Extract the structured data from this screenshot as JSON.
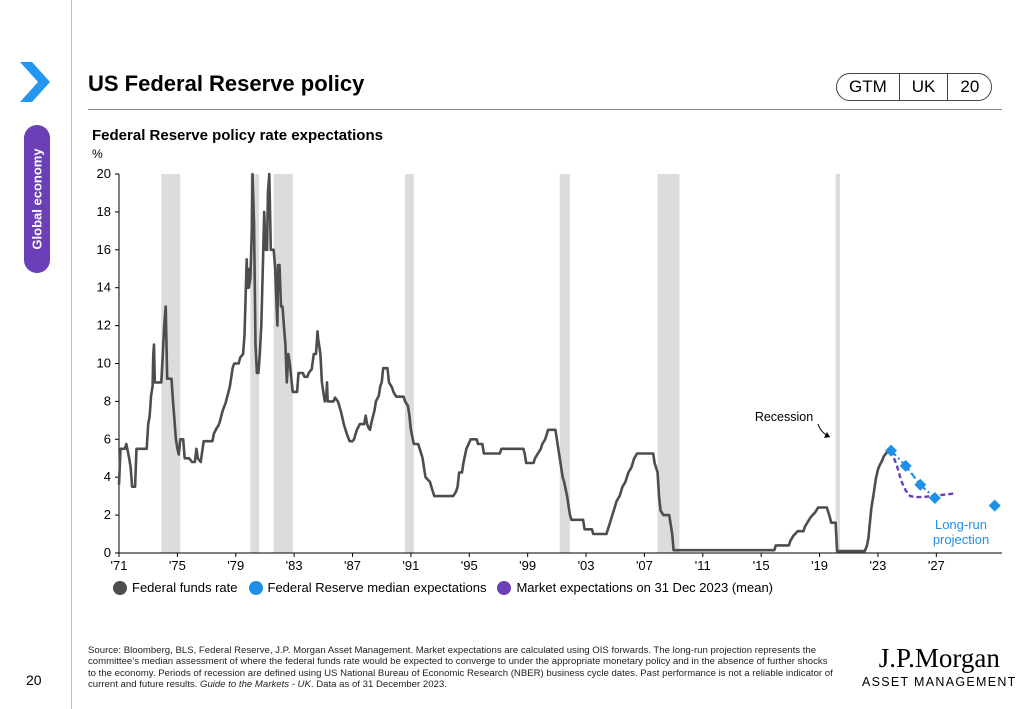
{
  "header": {
    "title": "US Federal Reserve policy",
    "badge": [
      "GTM",
      "UK",
      "20"
    ],
    "section_tab": "Global economy",
    "page_number": "20",
    "colors": {
      "accent": "#6a3fb8",
      "chevron": "#2196f3"
    }
  },
  "chart_data": {
    "type": "line",
    "title": "Federal Reserve policy rate expectations",
    "ylabel": "%",
    "ylim": [
      0,
      20
    ],
    "yticks": [
      0,
      2,
      4,
      6,
      8,
      10,
      12,
      14,
      16,
      18,
      20
    ],
    "xlim": [
      1971,
      2031.5
    ],
    "xticks": [
      {
        "x": 1971,
        "label": "'71"
      },
      {
        "x": 1975,
        "label": "'75"
      },
      {
        "x": 1979,
        "label": "'79"
      },
      {
        "x": 1983,
        "label": "'83"
      },
      {
        "x": 1987,
        "label": "'87"
      },
      {
        "x": 1991,
        "label": "'91"
      },
      {
        "x": 1995,
        "label": "'95"
      },
      {
        "x": 1999,
        "label": "'99"
      },
      {
        "x": 2003,
        "label": "'03"
      },
      {
        "x": 2007,
        "label": "'07"
      },
      {
        "x": 2011,
        "label": "'11"
      },
      {
        "x": 2015,
        "label": "'15"
      },
      {
        "x": 2019,
        "label": "'19"
      },
      {
        "x": 2023,
        "label": "'23"
      },
      {
        "x": 2027,
        "label": "'27"
      }
    ],
    "recessions": [
      [
        1973.9,
        1975.2
      ],
      [
        1980.0,
        1980.6
      ],
      [
        1981.6,
        1982.9
      ],
      [
        1990.6,
        1991.2
      ],
      [
        2001.2,
        2001.9
      ],
      [
        2007.9,
        2009.4
      ],
      [
        2020.1,
        2020.4
      ]
    ],
    "annotations": {
      "recession": "Recession",
      "long_run": [
        "Long-run",
        "projection"
      ]
    },
    "colors": {
      "fed_funds": "#4d4d4d",
      "fed_median": "#1e90e8",
      "market": "#6a3fb8",
      "recession": "#dcdcdc"
    },
    "series": [
      {
        "name": "Federal funds rate",
        "points": [
          [
            1971.0,
            3.6
          ],
          [
            1971.1,
            5.5
          ],
          [
            1971.4,
            5.5
          ],
          [
            1971.5,
            5.75
          ],
          [
            1971.7,
            5.0
          ],
          [
            1971.8,
            4.5
          ],
          [
            1971.9,
            3.5
          ],
          [
            1972.1,
            3.5
          ],
          [
            1972.2,
            5.5
          ],
          [
            1972.9,
            5.5
          ],
          [
            1973.0,
            6.8
          ],
          [
            1973.1,
            7.2
          ],
          [
            1973.2,
            8.3
          ],
          [
            1973.3,
            8.8
          ],
          [
            1973.35,
            10.5
          ],
          [
            1973.4,
            11.0
          ],
          [
            1973.45,
            9.0
          ],
          [
            1973.9,
            9.0
          ],
          [
            1974.0,
            10.5
          ],
          [
            1974.1,
            12.0
          ],
          [
            1974.2,
            13.0
          ],
          [
            1974.3,
            9.2
          ],
          [
            1974.6,
            9.2
          ],
          [
            1974.7,
            8.0
          ],
          [
            1974.8,
            7.0
          ],
          [
            1974.9,
            6.0
          ],
          [
            1975.0,
            5.5
          ],
          [
            1975.1,
            5.2
          ],
          [
            1975.2,
            6.0
          ],
          [
            1975.4,
            6.0
          ],
          [
            1975.5,
            5.0
          ],
          [
            1975.8,
            5.0
          ],
          [
            1976.0,
            4.8
          ],
          [
            1976.2,
            4.8
          ],
          [
            1976.3,
            5.5
          ],
          [
            1976.4,
            5.0
          ],
          [
            1976.6,
            4.8
          ],
          [
            1976.8,
            5.9
          ],
          [
            1977.4,
            5.9
          ],
          [
            1977.5,
            6.3
          ],
          [
            1977.7,
            6.6
          ],
          [
            1977.8,
            6.7
          ],
          [
            1977.9,
            6.9
          ],
          [
            1978.1,
            7.5
          ],
          [
            1978.3,
            7.9
          ],
          [
            1978.5,
            8.5
          ],
          [
            1978.6,
            8.8
          ],
          [
            1978.8,
            9.8
          ],
          [
            1978.9,
            10.0
          ],
          [
            1979.2,
            10.0
          ],
          [
            1979.3,
            10.3
          ],
          [
            1979.5,
            10.5
          ],
          [
            1979.6,
            11.5
          ],
          [
            1979.75,
            15.5
          ],
          [
            1979.8,
            14.0
          ],
          [
            1979.85,
            15.0
          ],
          [
            1979.9,
            14.0
          ],
          [
            1980.0,
            14.5
          ],
          [
            1980.1,
            17.0
          ],
          [
            1980.15,
            20.0
          ],
          [
            1980.25,
            17.5
          ],
          [
            1980.3,
            14.5
          ],
          [
            1980.35,
            11.0
          ],
          [
            1980.45,
            9.5
          ],
          [
            1980.55,
            9.5
          ],
          [
            1980.65,
            10.5
          ],
          [
            1980.75,
            12.0
          ],
          [
            1980.85,
            15.0
          ],
          [
            1980.95,
            18.0
          ],
          [
            1981.05,
            16.0
          ],
          [
            1981.15,
            16.0
          ],
          [
            1981.2,
            19.0
          ],
          [
            1981.3,
            20.0
          ],
          [
            1981.4,
            16.0
          ],
          [
            1981.6,
            16.0
          ],
          [
            1981.7,
            15.0
          ],
          [
            1981.8,
            13.0
          ],
          [
            1981.85,
            12.0
          ],
          [
            1981.9,
            15.2
          ],
          [
            1982.0,
            15.2
          ],
          [
            1982.1,
            13.0
          ],
          [
            1982.2,
            13.0
          ],
          [
            1982.3,
            12.0
          ],
          [
            1982.4,
            11.0
          ],
          [
            1982.5,
            9.0
          ],
          [
            1982.6,
            10.5
          ],
          [
            1982.7,
            10.0
          ],
          [
            1982.9,
            8.5
          ],
          [
            1983.2,
            8.5
          ],
          [
            1983.3,
            9.5
          ],
          [
            1983.6,
            9.5
          ],
          [
            1983.7,
            9.3
          ],
          [
            1983.9,
            9.3
          ],
          [
            1984.0,
            9.5
          ],
          [
            1984.2,
            9.7
          ],
          [
            1984.35,
            10.5
          ],
          [
            1984.5,
            10.5
          ],
          [
            1984.6,
            11.7
          ],
          [
            1984.65,
            11.3
          ],
          [
            1984.8,
            10.5
          ],
          [
            1984.9,
            9.0
          ],
          [
            1985.0,
            8.5
          ],
          [
            1985.1,
            8.0
          ],
          [
            1985.2,
            8.2
          ],
          [
            1985.25,
            9.0
          ],
          [
            1985.3,
            8.0
          ],
          [
            1985.7,
            8.0
          ],
          [
            1985.8,
            8.2
          ],
          [
            1986.0,
            8.0
          ],
          [
            1986.2,
            7.5
          ],
          [
            1986.4,
            6.8
          ],
          [
            1986.6,
            6.3
          ],
          [
            1986.8,
            5.9
          ],
          [
            1987.0,
            5.9
          ],
          [
            1987.1,
            6.0
          ],
          [
            1987.3,
            6.5
          ],
          [
            1987.5,
            6.8
          ],
          [
            1987.8,
            6.8
          ],
          [
            1987.9,
            7.25
          ],
          [
            1988.0,
            6.8
          ],
          [
            1988.1,
            6.6
          ],
          [
            1988.2,
            6.5
          ],
          [
            1988.3,
            6.9
          ],
          [
            1988.5,
            7.5
          ],
          [
            1988.6,
            8.0
          ],
          [
            1988.8,
            8.3
          ],
          [
            1988.9,
            8.8
          ],
          [
            1989.0,
            9.0
          ],
          [
            1989.1,
            9.75
          ],
          [
            1989.4,
            9.75
          ],
          [
            1989.5,
            9.0
          ],
          [
            1989.7,
            8.75
          ],
          [
            1989.8,
            8.5
          ],
          [
            1990.0,
            8.25
          ],
          [
            1990.5,
            8.25
          ],
          [
            1990.6,
            8.0
          ],
          [
            1990.8,
            7.75
          ],
          [
            1990.9,
            7.25
          ],
          [
            1991.0,
            6.5
          ],
          [
            1991.2,
            5.75
          ],
          [
            1991.5,
            5.75
          ],
          [
            1991.6,
            5.5
          ],
          [
            1991.8,
            5.0
          ],
          [
            1991.9,
            4.5
          ],
          [
            1992.0,
            4.0
          ],
          [
            1992.3,
            3.75
          ],
          [
            1992.5,
            3.25
          ],
          [
            1992.6,
            3.0
          ],
          [
            1993.9,
            3.0
          ],
          [
            1994.1,
            3.25
          ],
          [
            1994.2,
            3.5
          ],
          [
            1994.3,
            4.25
          ],
          [
            1994.5,
            4.25
          ],
          [
            1994.6,
            4.75
          ],
          [
            1994.8,
            5.5
          ],
          [
            1995.1,
            6.0
          ],
          [
            1995.5,
            6.0
          ],
          [
            1995.6,
            5.75
          ],
          [
            1995.9,
            5.75
          ],
          [
            1996.0,
            5.25
          ],
          [
            1997.1,
            5.25
          ],
          [
            1997.2,
            5.5
          ],
          [
            1998.7,
            5.5
          ],
          [
            1998.8,
            5.25
          ],
          [
            1998.9,
            4.75
          ],
          [
            1999.4,
            4.75
          ],
          [
            1999.5,
            5.0
          ],
          [
            1999.7,
            5.25
          ],
          [
            1999.9,
            5.5
          ],
          [
            2000.0,
            5.75
          ],
          [
            2000.2,
            6.0
          ],
          [
            2000.4,
            6.5
          ],
          [
            2000.9,
            6.5
          ],
          [
            2001.0,
            6.0
          ],
          [
            2001.1,
            5.5
          ],
          [
            2001.2,
            5.0
          ],
          [
            2001.3,
            4.5
          ],
          [
            2001.4,
            4.0
          ],
          [
            2001.5,
            3.75
          ],
          [
            2001.7,
            3.0
          ],
          [
            2001.8,
            2.5
          ],
          [
            2001.9,
            2.0
          ],
          [
            2002.0,
            1.75
          ],
          [
            2002.8,
            1.75
          ],
          [
            2002.9,
            1.25
          ],
          [
            2003.4,
            1.25
          ],
          [
            2003.5,
            1.0
          ],
          [
            2004.4,
            1.0
          ],
          [
            2004.5,
            1.25
          ],
          [
            2004.6,
            1.5
          ],
          [
            2004.8,
            2.0
          ],
          [
            2004.9,
            2.25
          ],
          [
            2005.1,
            2.75
          ],
          [
            2005.3,
            3.0
          ],
          [
            2005.5,
            3.5
          ],
          [
            2005.7,
            3.75
          ],
          [
            2005.9,
            4.25
          ],
          [
            2006.1,
            4.5
          ],
          [
            2006.3,
            5.0
          ],
          [
            2006.5,
            5.25
          ],
          [
            2007.6,
            5.25
          ],
          [
            2007.7,
            4.75
          ],
          [
            2007.8,
            4.5
          ],
          [
            2007.9,
            4.25
          ],
          [
            2008.0,
            3.0
          ],
          [
            2008.1,
            2.25
          ],
          [
            2008.3,
            2.0
          ],
          [
            2008.7,
            2.0
          ],
          [
            2008.8,
            1.5
          ],
          [
            2008.9,
            1.0
          ],
          [
            2009.0,
            0.15
          ],
          [
            2015.9,
            0.15
          ],
          [
            2016.0,
            0.4
          ],
          [
            2016.9,
            0.4
          ],
          [
            2017.0,
            0.65
          ],
          [
            2017.2,
            0.9
          ],
          [
            2017.5,
            1.15
          ],
          [
            2017.9,
            1.15
          ],
          [
            2018.0,
            1.4
          ],
          [
            2018.2,
            1.65
          ],
          [
            2018.4,
            1.9
          ],
          [
            2018.7,
            2.15
          ],
          [
            2018.9,
            2.4
          ],
          [
            2019.5,
            2.4
          ],
          [
            2019.6,
            2.15
          ],
          [
            2019.7,
            1.9
          ],
          [
            2019.8,
            1.6
          ],
          [
            2020.1,
            1.6
          ],
          [
            2020.2,
            0.1
          ],
          [
            2022.1,
            0.1
          ],
          [
            2022.25,
            0.4
          ],
          [
            2022.35,
            0.8
          ],
          [
            2022.45,
            1.6
          ],
          [
            2022.55,
            2.4
          ],
          [
            2022.7,
            3.1
          ],
          [
            2022.85,
            3.9
          ],
          [
            2023.0,
            4.4
          ],
          [
            2023.1,
            4.6
          ],
          [
            2023.3,
            4.9
          ],
          [
            2023.4,
            5.1
          ],
          [
            2023.6,
            5.3
          ],
          [
            2023.9,
            5.4
          ]
        ]
      },
      {
        "name": "Federal Reserve median expectations",
        "points": [
          [
            2023.9,
            5.4
          ],
          [
            2024.9,
            4.6
          ],
          [
            2025.9,
            3.6
          ],
          [
            2026.9,
            2.9
          ]
        ],
        "long_run": [
          2031.0,
          2.5
        ]
      },
      {
        "name": "Market expectations on 31 Dec 2023 (mean)",
        "points": [
          [
            2023.9,
            5.4
          ],
          [
            2024.3,
            4.6
          ],
          [
            2024.6,
            3.8
          ],
          [
            2024.9,
            3.3
          ],
          [
            2025.2,
            3.0
          ],
          [
            2025.6,
            2.95
          ],
          [
            2026.1,
            2.95
          ],
          [
            2026.6,
            3.0
          ],
          [
            2027.2,
            3.05
          ],
          [
            2027.8,
            3.1
          ],
          [
            2028.3,
            3.15
          ]
        ]
      }
    ]
  },
  "footnote": {
    "main": "Source: Bloomberg, BLS, Federal Reserve, J.P. Morgan Asset Management. Market expectations are calculated using OIS forwards. The long-run projection represents the committee’s median assessment of where the federal funds rate would be expected to converge to under the appropriate monetary policy and in the absence of further shocks to the economy. Periods of recession are defined using US National Bureau of Economic Research (NBER) business cycle dates. Past performance is not a reliable indicator of current and future results. ",
    "guide": "Guide to the Markets - UK",
    "tail": ". Data as of 31 December 2023."
  },
  "logo": {
    "top": "J.P.Morgan",
    "bottom": "ASSET MANAGEMENT"
  }
}
